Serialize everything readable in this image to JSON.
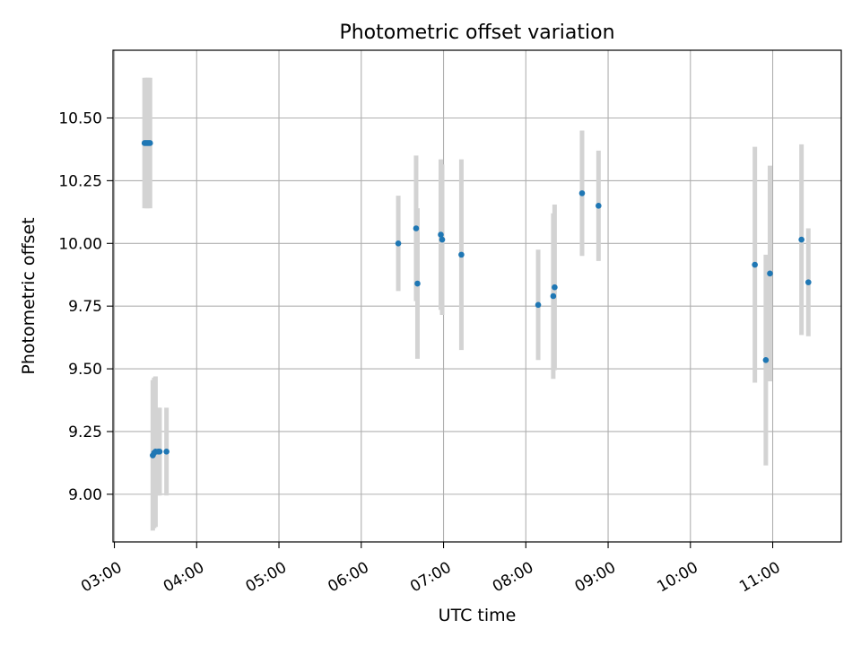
{
  "chart_data": {
    "type": "scatter",
    "title": "Photometric offset variation",
    "xlabel": "UTC time",
    "ylabel": "Photometric offset",
    "x_ticks": [
      "03:00",
      "04:00",
      "05:00",
      "06:00",
      "07:00",
      "08:00",
      "09:00",
      "10:00",
      "11:00"
    ],
    "x_tick_values": [
      "03:00",
      "04:00",
      "05:00",
      "06:00",
      "07:00",
      "08:00",
      "09:00",
      "10:00",
      "11:00"
    ],
    "y_ticks": [
      "9.00",
      "9.25",
      "9.50",
      "9.75",
      "10.00",
      "10.25",
      "10.50"
    ],
    "y_tick_values": [
      9.0,
      9.25,
      9.5,
      9.75,
      10.0,
      10.25,
      10.5
    ],
    "xlim": [
      "02:59",
      "11:50"
    ],
    "ylim": [
      8.81,
      10.77
    ],
    "grid": true,
    "colors": {
      "points": "#1f77b4",
      "errorbars": "#d3d3d3",
      "grid": "#b0b0b0"
    },
    "points": [
      {
        "x": "03:22",
        "y": 10.4,
        "err": 0.26
      },
      {
        "x": "03:23",
        "y": 10.4,
        "err": 0.26
      },
      {
        "x": "03:24",
        "y": 10.4,
        "err": 0.26
      },
      {
        "x": "03:25",
        "y": 10.4,
        "err": 0.26
      },
      {
        "x": "03:26",
        "y": 10.4,
        "err": 0.26
      },
      {
        "x": "03:28",
        "y": 9.155,
        "err": 0.3
      },
      {
        "x": "03:29",
        "y": 9.165,
        "err": 0.3
      },
      {
        "x": "03:30",
        "y": 9.17,
        "err": 0.3
      },
      {
        "x": "03:32",
        "y": 9.17,
        "err": 0.175
      },
      {
        "x": "03:33",
        "y": 9.17,
        "err": 0.175
      },
      {
        "x": "03:38",
        "y": 9.17,
        "err": 0.175
      },
      {
        "x": "06:27",
        "y": 10.0,
        "err": 0.19
      },
      {
        "x": "06:40",
        "y": 10.06,
        "err": 0.29
      },
      {
        "x": "06:41",
        "y": 9.84,
        "err": 0.3
      },
      {
        "x": "06:58",
        "y": 10.035,
        "err": 0.3
      },
      {
        "x": "06:59",
        "y": 10.015,
        "err": 0.3
      },
      {
        "x": "07:13",
        "y": 9.955,
        "err": 0.38
      },
      {
        "x": "08:09",
        "y": 9.755,
        "err": 0.22
      },
      {
        "x": "08:20",
        "y": 9.79,
        "err": 0.33
      },
      {
        "x": "08:21",
        "y": 9.825,
        "err": 0.33
      },
      {
        "x": "08:41",
        "y": 10.2,
        "err": 0.25
      },
      {
        "x": "08:53",
        "y": 10.15,
        "err": 0.22
      },
      {
        "x": "10:47",
        "y": 9.915,
        "err": 0.47
      },
      {
        "x": "10:55",
        "y": 9.535,
        "err": 0.42
      },
      {
        "x": "10:58",
        "y": 9.88,
        "err": 0.43
      },
      {
        "x": "11:21",
        "y": 10.015,
        "err": 0.38
      },
      {
        "x": "11:26",
        "y": 9.845,
        "err": 0.215
      }
    ]
  }
}
